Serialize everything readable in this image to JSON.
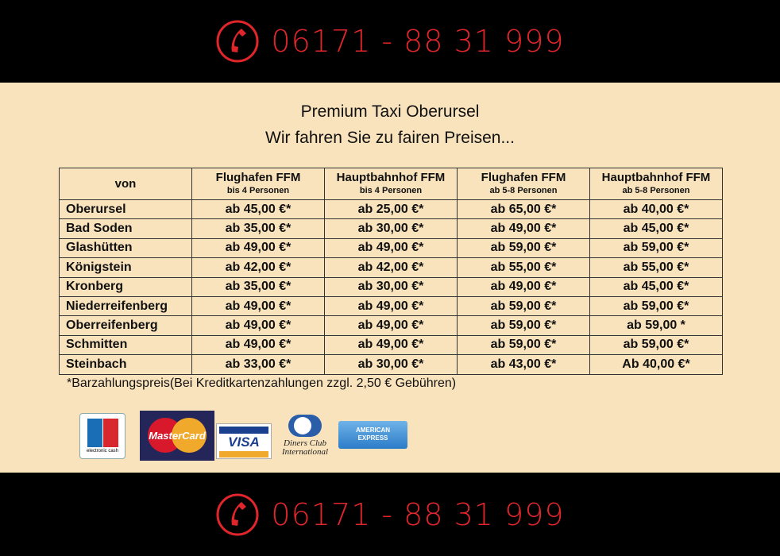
{
  "phone": "06171 - 88 31 999",
  "title": "Premium Taxi Oberursel",
  "subtitle": "Wir fahren Sie zu fairen Preisen...",
  "table": {
    "headers": [
      {
        "main": "von",
        "sub": ""
      },
      {
        "main": "Flughafen FFM",
        "sub": "bis 4 Personen"
      },
      {
        "main": "Hauptbahnhof FFM",
        "sub": "bis 4 Personen"
      },
      {
        "main": "Flughafen FFM",
        "sub": "ab 5-8 Personen"
      },
      {
        "main": "Hauptbahnhof FFM",
        "sub": "ab 5-8 Personen"
      }
    ],
    "rows": [
      [
        "Oberursel",
        "ab 45,00 €*",
        "ab 25,00 €*",
        "ab 65,00 €*",
        "ab 40,00 €*"
      ],
      [
        "Bad Soden",
        "ab  35,00 €*",
        "ab 30,00 €*",
        "ab 49,00 €*",
        "ab 45,00 €*"
      ],
      [
        "Glashütten",
        "ab 49,00 €*",
        "ab 49,00 €*",
        "ab 59,00 €*",
        "ab 59,00 €*"
      ],
      [
        "Königstein",
        "ab 42,00 €*",
        "ab 42,00 €*",
        "ab 55,00 €*",
        "ab 55,00 €*"
      ],
      [
        "Kronberg",
        "ab 35,00 €*",
        "ab 30,00 €*",
        "ab 49,00 €*",
        "ab 45,00 €*"
      ],
      [
        "Niederreifenberg",
        "ab 49,00 €*",
        "ab 49,00 €*",
        "ab 59,00 €*",
        "ab 59,00 €*"
      ],
      [
        "Oberreifenberg",
        "ab 49,00 €*",
        "ab 49,00 €*",
        "ab 59,00 €*",
        "ab 59,00 *"
      ],
      [
        "Schmitten",
        "ab 49,00 €*",
        "ab 49,00 €*",
        "ab 59,00 €*",
        "ab 59,00 €*"
      ],
      [
        "Steinbach",
        "ab 33,00 €*",
        "ab 30,00 €*",
        "ab 43,00 €*",
        "Ab 40,00 €*"
      ]
    ]
  },
  "footnote": "*Barzahlungspreis(Bei Kreditkartenzahlungen zzgl. 2,50 € Gebühren)",
  "payment_logos": {
    "ec": "electronic cash",
    "mastercard": "MasterCard",
    "visa": "VISA",
    "diners_1": "Diners Club",
    "diners_2": "International",
    "amex_1": "AMERICAN",
    "amex_2": "EXPRESS"
  },
  "colors": {
    "accent": "#e0262b",
    "background": "#f9e3bd",
    "bar": "#000000"
  }
}
